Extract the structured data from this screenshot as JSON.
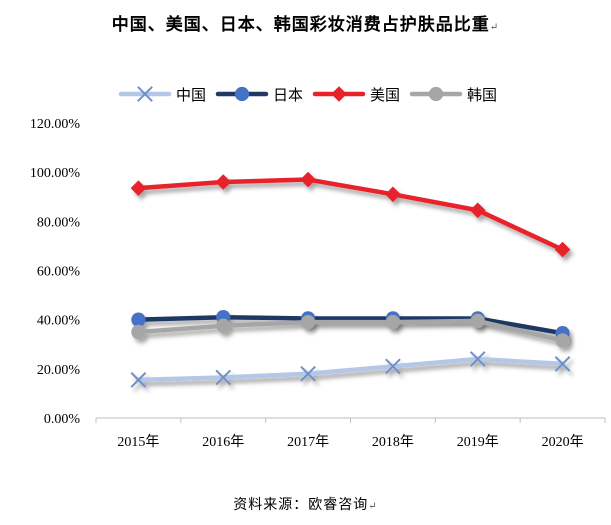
{
  "title": "中国、美国、日本、韩国彩妆消费占护肤品比重",
  "paragraph_mark": "↵",
  "source": "资料来源：欧睿咨询",
  "chart_data": {
    "type": "line",
    "title": "中国、美国、日本、韩国彩妆消费占护肤品比重",
    "x": [
      "2015年",
      "2016年",
      "2017年",
      "2018年",
      "2019年",
      "2020年"
    ],
    "ylim": [
      0,
      120
    ],
    "yticks": [
      "0.00%",
      "20.00%",
      "40.00%",
      "60.00%",
      "80.00%",
      "100.00%",
      "120.00%"
    ],
    "grid": false,
    "legend_position": "top",
    "series": [
      {
        "name": "中国",
        "color": "#b4c7e7",
        "marker": "x",
        "values": [
          15.5,
          16.5,
          18,
          21,
          24,
          22
        ]
      },
      {
        "name": "日本",
        "color": "#1f3864",
        "marker": "circle",
        "marker_color": "#4472c4",
        "values": [
          40,
          41,
          40.5,
          40.5,
          40.5,
          34.5
        ]
      },
      {
        "name": "美国",
        "color": "#e8202a",
        "marker": "diamond",
        "values": [
          93.5,
          96,
          97,
          91,
          84.5,
          68.5
        ]
      },
      {
        "name": "韩国",
        "color": "#a6a6a6",
        "marker": "circle",
        "marker_color": "#a6a6a6",
        "values": [
          35,
          37.5,
          39,
          39,
          39.5,
          31.5
        ]
      }
    ]
  }
}
